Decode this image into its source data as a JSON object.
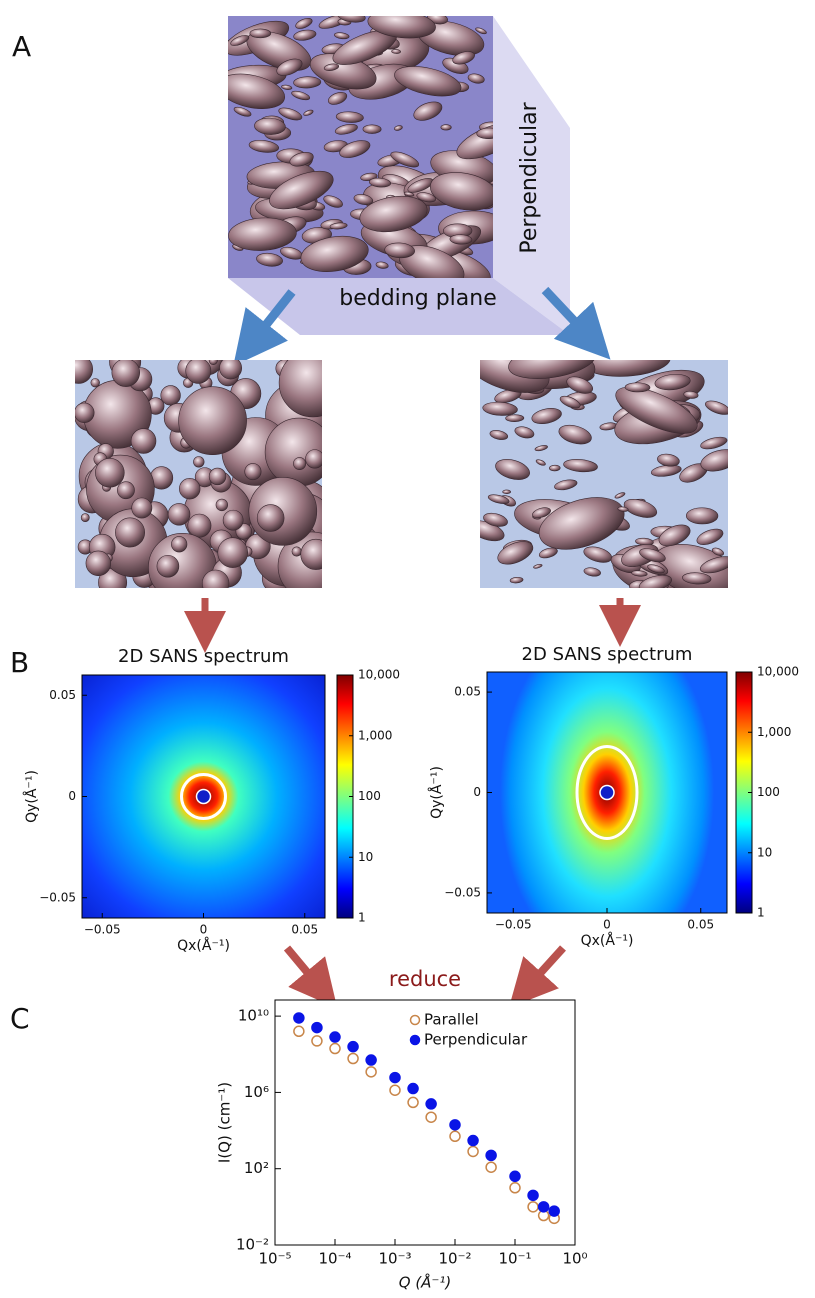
{
  "panel_labels": [
    "A",
    "B",
    "C"
  ],
  "schematic": {
    "perpendicular_label": "Perpendicular",
    "bedding_plane_label": "bedding plane"
  },
  "reduce_label": "reduce",
  "chart_data": [
    {
      "type": "heatmap",
      "title": "2D SANS spectrum",
      "xlabel": "Qx(Å⁻¹)",
      "ylabel": "Qy(Å⁻¹)",
      "xlim": [
        -0.06,
        0.06
      ],
      "ylim": [
        -0.06,
        0.06
      ],
      "xticks": [
        {
          "value": -0.05,
          "label": "−0.05"
        },
        0,
        0.05
      ],
      "yticks": [
        {
          "value": -0.05,
          "label": "−0.05"
        },
        0,
        0.05
      ],
      "colorbar": {
        "lim": [
          1,
          10000
        ],
        "log_scale": true,
        "ticks": [
          1,
          10,
          100,
          {
            "value": 1000,
            "label": "1,000"
          },
          {
            "value": 10000,
            "label": "10,000"
          }
        ]
      }
    },
    {
      "type": "heatmap",
      "title": "2D SANS spectrum",
      "xlabel": "Qx(Å⁻¹)",
      "ylabel": "Qy(Å⁻¹)",
      "xlim": [
        -0.064,
        0.064
      ],
      "ylim": [
        -0.06,
        0.06
      ],
      "xticks": [
        {
          "value": -0.05,
          "label": "−0.05"
        },
        0,
        0.05
      ],
      "yticks": [
        {
          "value": -0.05,
          "label": "−0.05"
        },
        0,
        0.05
      ],
      "colorbar": {
        "lim": [
          1,
          10000
        ],
        "log_scale": true,
        "ticks": [
          1,
          10,
          100,
          {
            "value": 1000,
            "label": "1,000"
          },
          {
            "value": 10000,
            "label": "10,000"
          }
        ]
      }
    },
    {
      "type": "scatter",
      "xlabel": "Q (Å⁻¹)",
      "ylabel": "I(Q) (cm⁻¹)",
      "log_scale": true,
      "legend": "upper right",
      "xlim": [
        1e-05,
        1
      ],
      "ylim": [
        0.01,
        70000000000.0
      ],
      "xticks": [
        {
          "value": 1e-05,
          "label": "10⁻⁵"
        },
        {
          "value": 0.0001,
          "label": "10⁻⁴"
        },
        {
          "value": 0.001,
          "label": "10⁻³"
        },
        {
          "value": 0.01,
          "label": "10⁻²"
        },
        {
          "value": 0.1,
          "label": "10⁻¹"
        },
        {
          "value": 1,
          "label": "10⁰"
        }
      ],
      "yticks": [
        {
          "value": 0.01,
          "label": "10⁻²"
        },
        {
          "value": 100,
          "label": "10²"
        },
        {
          "value": 1000000,
          "label": "10⁶"
        },
        {
          "value": 10000000000,
          "label": "10¹⁰"
        }
      ],
      "x": [
        2.5e-05,
        5e-05,
        0.0001,
        0.0002,
        0.0004,
        0.001,
        0.002,
        0.004,
        0.01,
        0.02,
        0.04,
        0.1,
        0.2,
        0.3,
        0.45
      ],
      "series": [
        {
          "name": "Parallel",
          "color": "#c8864a",
          "marker": "open",
          "values": [
            1600000000.0,
            500000000.0,
            200000000.0,
            60000000.0,
            12000000.0,
            1300000.0,
            300000.0,
            50000.0,
            5000.0,
            800,
            120,
            10,
            1,
            0.35,
            0.25
          ]
        },
        {
          "name": "Perpendicular",
          "color": "#0a14e6",
          "marker": "filled",
          "values": [
            8000000000.0,
            2500000000.0,
            800000000.0,
            250000000.0,
            50000000.0,
            6000000.0,
            1600000.0,
            250000.0,
            20000.0,
            3000,
            500,
            40,
            4,
            1,
            0.6
          ]
        }
      ]
    }
  ]
}
